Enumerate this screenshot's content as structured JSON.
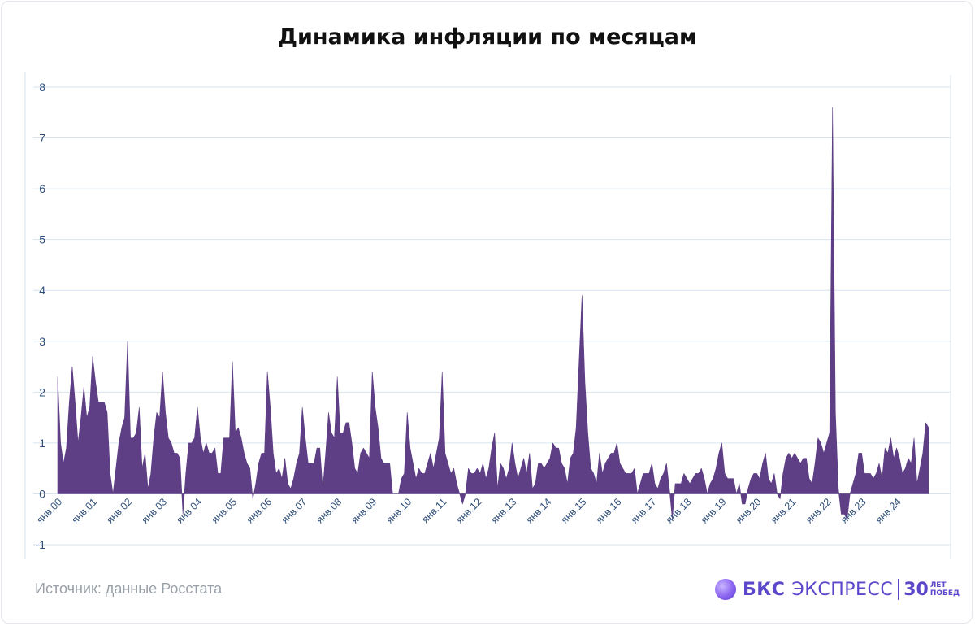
{
  "title": "Динамика инфляции по месяцам",
  "source": "Источник: данные Росстата",
  "brand": {
    "name": "БКС",
    "product": "ЭКСПРЕСС",
    "years": "30",
    "years_caption_1": "ЛЕТ",
    "years_caption_2": "ПОБЕД"
  },
  "colors": {
    "area": "#5e3f86",
    "grid": "#d6e4f0",
    "axis_text": "#2f4f7a"
  },
  "chart_data": {
    "type": "area",
    "title": "Динамика инфляции по месяцам",
    "xlabel": "",
    "ylabel": "",
    "ylim": [
      -1,
      8
    ],
    "yticks": [
      -1,
      0,
      1,
      2,
      3,
      4,
      5,
      6,
      7,
      8
    ],
    "grid": true,
    "x_tick_labels": [
      "янв.00",
      "янв.01",
      "янв.02",
      "янв.03",
      "янв.04",
      "янв.05",
      "янв.06",
      "янв.07",
      "янв.08",
      "янв.09",
      "янв.10",
      "янв.11",
      "янв.12",
      "янв.13",
      "янв.14",
      "янв.15",
      "янв.16",
      "янв.17",
      "янв.18",
      "янв.19",
      "янв.20",
      "янв.21",
      "янв.22",
      "янв.23",
      "янв.24"
    ],
    "series": [
      {
        "values": [
          2.3,
          1.0,
          0.6,
          0.9,
          1.8,
          2.5,
          1.8,
          1.0,
          1.5,
          2.1,
          1.5,
          1.7,
          2.7,
          2.2,
          1.8,
          1.8,
          1.8,
          1.6,
          0.4,
          0.0,
          0.5,
          1.0,
          1.3,
          1.5,
          3.0,
          1.1,
          1.1,
          1.2,
          1.7,
          0.5,
          0.8,
          0.1,
          0.4,
          1.1,
          1.6,
          1.5,
          2.4,
          1.6,
          1.1,
          1.0,
          0.8,
          0.8,
          0.7,
          -0.4,
          0.4,
          1.0,
          1.0,
          1.1,
          1.7,
          1.1,
          0.8,
          1.0,
          0.8,
          0.8,
          0.9,
          0.4,
          0.4,
          1.1,
          1.1,
          1.1,
          2.6,
          1.2,
          1.3,
          1.1,
          0.8,
          0.6,
          0.5,
          -0.1,
          0.2,
          0.6,
          0.8,
          0.8,
          2.4,
          1.7,
          0.8,
          0.4,
          0.5,
          0.3,
          0.7,
          0.2,
          0.1,
          0.3,
          0.6,
          0.8,
          1.7,
          1.1,
          0.6,
          0.6,
          0.6,
          0.9,
          0.9,
          0.1,
          0.8,
          1.6,
          1.2,
          1.1,
          2.3,
          1.2,
          1.2,
          1.4,
          1.4,
          1.0,
          0.5,
          0.4,
          0.8,
          0.9,
          0.8,
          0.7,
          2.4,
          1.7,
          1.3,
          0.7,
          0.6,
          0.6,
          0.6,
          0.0,
          0.0,
          0.0,
          0.3,
          0.4,
          1.6,
          0.9,
          0.6,
          0.3,
          0.5,
          0.4,
          0.4,
          0.6,
          0.8,
          0.5,
          0.8,
          1.1,
          2.4,
          0.8,
          0.6,
          0.4,
          0.5,
          0.2,
          0.0,
          -0.2,
          0.0,
          0.5,
          0.4,
          0.4,
          0.5,
          0.4,
          0.6,
          0.3,
          0.5,
          0.9,
          1.2,
          0.1,
          0.6,
          0.5,
          0.3,
          0.5,
          1.0,
          0.6,
          0.3,
          0.5,
          0.7,
          0.4,
          0.8,
          0.1,
          0.2,
          0.6,
          0.6,
          0.5,
          0.6,
          0.7,
          1.0,
          0.9,
          0.9,
          0.6,
          0.5,
          0.2,
          0.7,
          0.8,
          1.3,
          2.6,
          3.9,
          2.2,
          1.2,
          0.5,
          0.4,
          0.2,
          0.8,
          0.4,
          0.6,
          0.7,
          0.8,
          0.8,
          1.0,
          0.6,
          0.5,
          0.4,
          0.4,
          0.4,
          0.5,
          0.0,
          0.2,
          0.4,
          0.4,
          0.4,
          0.6,
          0.2,
          0.1,
          0.3,
          0.4,
          0.6,
          0.1,
          -0.5,
          0.2,
          0.2,
          0.2,
          0.4,
          0.3,
          0.2,
          0.3,
          0.4,
          0.4,
          0.5,
          0.3,
          0.0,
          0.2,
          0.3,
          0.5,
          0.8,
          1.0,
          0.4,
          0.3,
          0.3,
          0.3,
          0.0,
          0.2,
          -0.2,
          -0.2,
          0.1,
          0.3,
          0.4,
          0.4,
          0.3,
          0.6,
          0.8,
          0.3,
          0.2,
          0.4,
          0.0,
          -0.1,
          0.4,
          0.7,
          0.8,
          0.7,
          0.8,
          0.7,
          0.6,
          0.7,
          0.7,
          0.3,
          0.2,
          0.6,
          1.1,
          1.0,
          0.8,
          1.0,
          1.2,
          7.6,
          1.6,
          0.1,
          -0.4,
          -0.4,
          -0.5,
          0.0,
          0.2,
          0.4,
          0.8,
          0.8,
          0.4,
          0.4,
          0.4,
          0.3,
          0.4,
          0.6,
          0.3,
          0.9,
          0.8,
          1.1,
          0.7,
          0.9,
          0.7,
          0.4,
          0.5,
          0.7,
          0.6,
          1.1,
          0.2,
          0.5,
          0.8,
          1.4,
          1.3
        ]
      }
    ]
  }
}
